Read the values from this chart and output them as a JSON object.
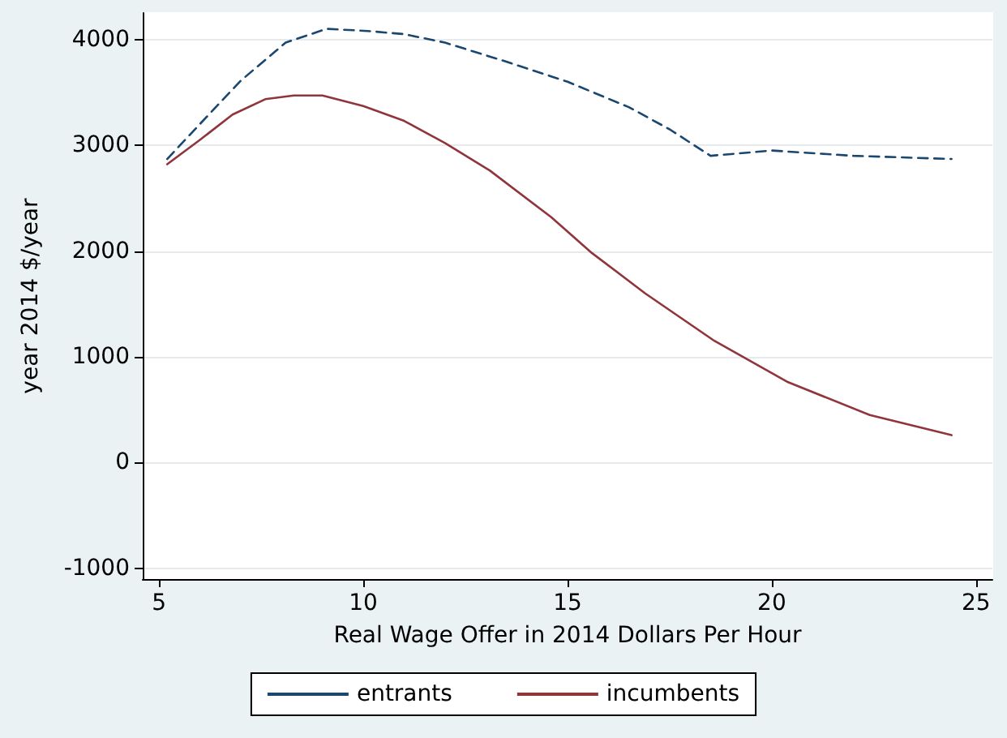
{
  "chart_data": {
    "type": "line",
    "xlabel": "Real Wage Offer in 2014 Dollars Per Hour",
    "ylabel": "year 2014 $/year",
    "xlim": [
      4.6,
      25.4
    ],
    "xticks": [
      5,
      10,
      15,
      20,
      25
    ],
    "ylim": [
      -1100,
      4250
    ],
    "yticks": [
      -1000,
      0,
      1000,
      2000,
      3000,
      4000
    ],
    "grid": "y",
    "legend": "bottom",
    "marker": "none",
    "series": [
      {
        "name": "entrants",
        "color": "#1a476f",
        "line_style": "dashed",
        "x": [
          5.2,
          6,
          7,
          8.1,
          9.1,
          10.1,
          11,
          12,
          13.5,
          15,
          16.5,
          17.5,
          18.5,
          20,
          22,
          24.4
        ],
        "values": [
          2870,
          3200,
          3610,
          3970,
          4100,
          4080,
          4050,
          3970,
          3790,
          3600,
          3360,
          3150,
          2900,
          2950,
          2900,
          2870
        ]
      },
      {
        "name": "incumbents",
        "color": "#90353b",
        "line_style": "solid",
        "x": [
          5.2,
          6,
          6.8,
          7.6,
          8.3,
          9,
          10,
          11,
          12,
          13.1,
          14.6,
          15.6,
          16.9,
          18.6,
          20.4,
          22.4,
          24.4
        ],
        "values": [
          2820,
          3050,
          3290,
          3435,
          3470,
          3470,
          3370,
          3230,
          3020,
          2760,
          2320,
          1980,
          1600,
          1150,
          760,
          450,
          260
        ]
      }
    ]
  }
}
